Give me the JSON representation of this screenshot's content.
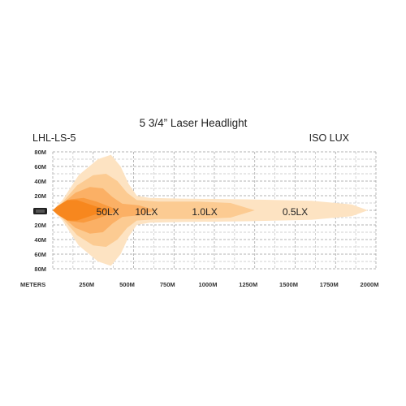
{
  "chart_data": {
    "type": "area",
    "title": "5 3/4” Laser Headlight",
    "model_label": "LHL-LS-5",
    "scale_label": "ISO LUX",
    "x_axis_label": "METERS",
    "x_ticks": [
      "250M",
      "500M",
      "750M",
      "1000M",
      "1250M",
      "1500M",
      "1750M",
      "2000M"
    ],
    "x_tick_values": [
      250,
      500,
      750,
      1000,
      1250,
      1500,
      1750,
      2000
    ],
    "y_ticks": [
      "80M",
      "60M",
      "40M",
      "20M",
      "0",
      "20M",
      "40M",
      "60M",
      "80M"
    ],
    "y_tick_values": [
      80,
      60,
      40,
      20,
      0,
      -20,
      -40,
      -60,
      -80
    ],
    "xlim": [
      0,
      2000
    ],
    "ylim": [
      -80,
      80
    ],
    "grid": true,
    "zones": [
      {
        "label": "0.5LX",
        "reach": 1950,
        "color": "#fde3c2",
        "label_x": 1500
      },
      {
        "label": "1.0LX",
        "reach": 1250,
        "color": "#fccb92",
        "label_x": 940
      },
      {
        "label": "10LX",
        "reach": 640,
        "color": "#fbb065",
        "label_x": 580
      },
      {
        "label": "50LX",
        "reach": 410,
        "color": "#f99a3e",
        "label_x": 340
      }
    ],
    "core_color": "#f7871e"
  }
}
